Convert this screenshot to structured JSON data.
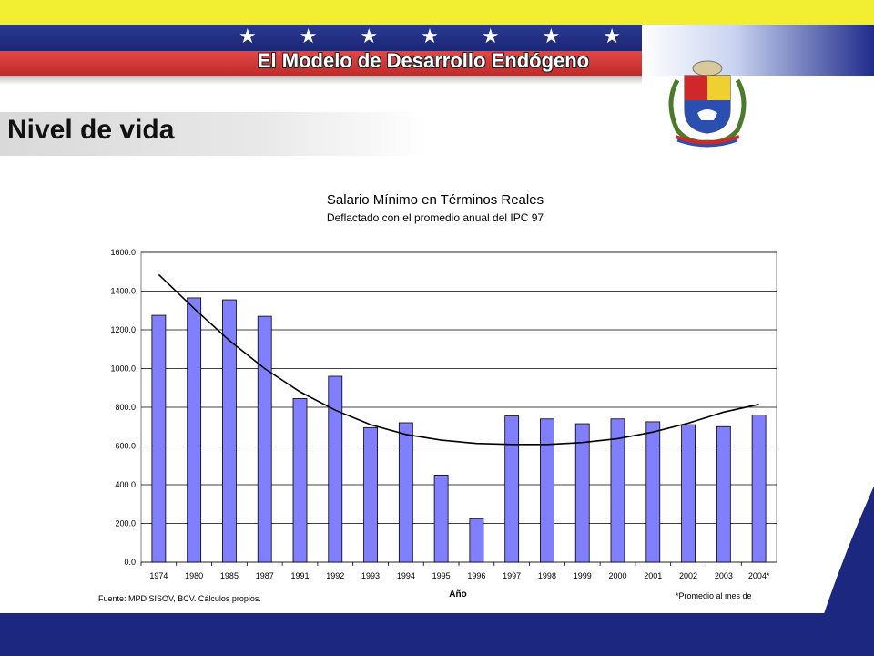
{
  "header": {
    "title": "El Modelo de Desarrollo Endógeno",
    "stars": [
      "★",
      "★",
      "★",
      "★",
      "★",
      "★",
      "★"
    ]
  },
  "section": {
    "title": "Nivel de vida"
  },
  "colors": {
    "yellow": "#f2ee32",
    "blue": "#1c2880",
    "red": "#d03838",
    "bar": "#8080ff"
  },
  "icons": {
    "emblem": "coat-of-arms-icon"
  },
  "chart_data": {
    "type": "bar",
    "title": "Salario Mínimo en Términos Reales",
    "subtitle": "Deflactado con el promedio anual del IPC 97",
    "xlabel": "Año",
    "ylabel": "",
    "categories": [
      "1974",
      "1980",
      "1985",
      "1987",
      "1991",
      "1992",
      "1993",
      "1994",
      "1995",
      "1996",
      "1997",
      "1998",
      "1999",
      "2000",
      "2001",
      "2002",
      "2003",
      "2004*"
    ],
    "values": [
      1275,
      1365,
      1355,
      1270,
      845,
      960,
      695,
      720,
      450,
      225,
      755,
      740,
      715,
      740,
      725,
      710,
      700,
      760
    ],
    "trendline": {
      "type": "polynomial",
      "values": [
        1485,
        1310,
        1145,
        1000,
        880,
        785,
        710,
        660,
        630,
        613,
        608,
        608,
        618,
        638,
        672,
        718,
        775,
        815
      ]
    },
    "ylim": [
      0,
      1600
    ],
    "yticks": [
      "0.0",
      "200.0",
      "400.0",
      "600.0",
      "800.0",
      "1000.0",
      "1200.0",
      "1400.0",
      "1600.0"
    ],
    "grid": true,
    "legend": "none",
    "source_note": "Fuente: MPD SISOV, BCV. Cálculos propios.",
    "footnote": "*Promedio al mes de"
  }
}
